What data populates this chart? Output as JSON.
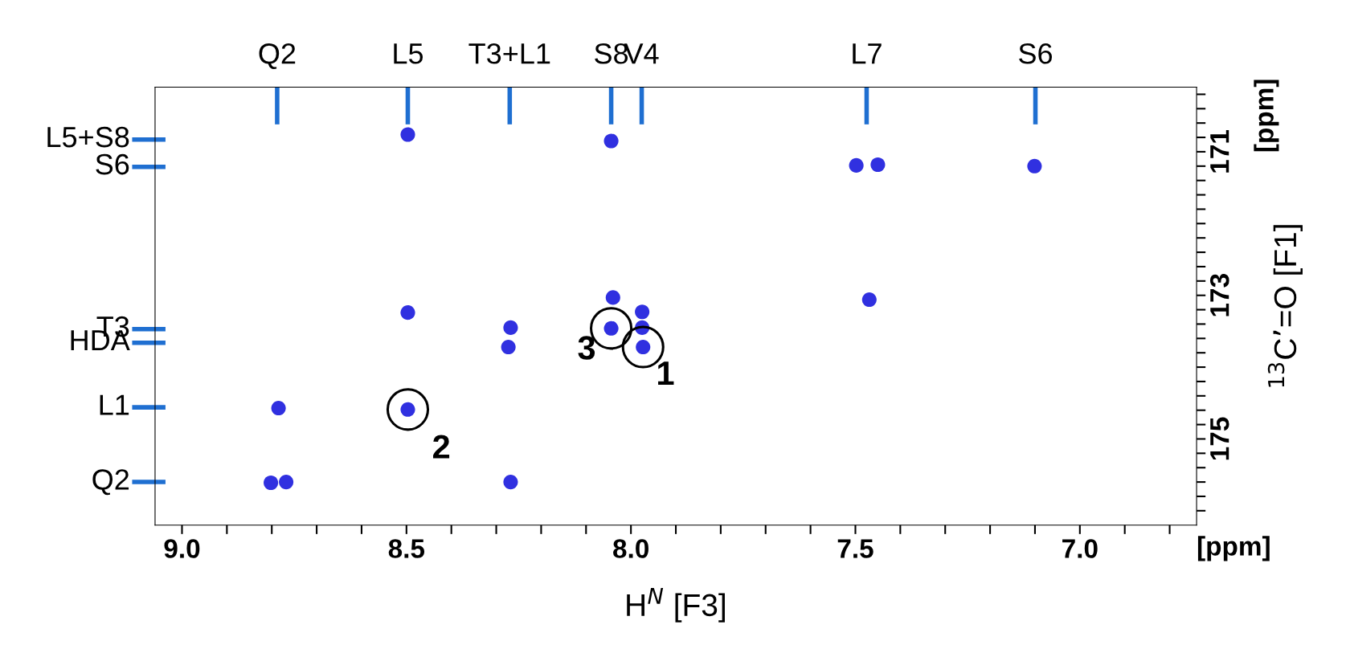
{
  "chart_data": {
    "type": "scatter",
    "xlabel": "H$^{N}$ [F3]",
    "ylabel": "$^{13}$C’=O [F1]",
    "x": [
      8.497,
      8.044,
      8.497,
      8.268,
      8.273,
      8.04,
      8.044,
      7.975,
      7.975,
      7.973,
      8.785,
      8.497,
      8.802,
      8.768,
      8.268,
      7.498,
      7.45,
      7.101,
      7.469
    ],
    "series": [
      {
        "color": "#3030e0",
        "values": [
          170.76,
          170.85,
          173.24,
          173.45,
          173.72,
          173.03,
          173.46,
          173.23,
          173.45,
          173.72,
          174.57,
          174.59,
          175.61,
          175.6,
          175.6,
          171.19,
          171.18,
          171.2,
          173.06
        ]
      }
    ],
    "marker": "circle",
    "xlim": [
      9.06,
      6.74
    ],
    "xticks": [
      {
        "value": 9.0,
        "label": "9.0"
      },
      {
        "value": 8.9,
        "label": null
      },
      {
        "value": 8.8,
        "label": null
      },
      {
        "value": 8.7,
        "label": null
      },
      {
        "value": 8.6,
        "label": null
      },
      {
        "value": 8.5,
        "label": "8.5"
      },
      {
        "value": 8.4,
        "label": null
      },
      {
        "value": 8.3,
        "label": null
      },
      {
        "value": 8.2,
        "label": null
      },
      {
        "value": 8.1,
        "label": null
      },
      {
        "value": 8.0,
        "label": "8.0"
      },
      {
        "value": 7.9,
        "label": null
      },
      {
        "value": 7.8,
        "label": null
      },
      {
        "value": 7.7,
        "label": null
      },
      {
        "value": 7.6,
        "label": null
      },
      {
        "value": 7.5,
        "label": "7.5"
      },
      {
        "value": 7.4,
        "label": null
      },
      {
        "value": 7.3,
        "label": null
      },
      {
        "value": 7.2,
        "label": null
      },
      {
        "value": 7.1,
        "label": null
      },
      {
        "value": 7.0,
        "label": "7.0"
      },
      {
        "value": 6.9,
        "label": null
      },
      {
        "value": 6.8,
        "label": null
      }
    ],
    "ylim": [
      176.2,
      170.1
    ],
    "yticks": [
      {
        "value": 170.2,
        "label": null
      },
      {
        "value": 170.4,
        "label": null
      },
      {
        "value": 170.6,
        "label": null
      },
      {
        "value": 170.8,
        "label": null
      },
      {
        "value": 171,
        "label": "171"
      },
      {
        "value": 171.2,
        "label": null
      },
      {
        "value": 171.4,
        "label": null
      },
      {
        "value": 171.6,
        "label": null
      },
      {
        "value": 171.8,
        "label": null
      },
      {
        "value": 172.0,
        "label": null
      },
      {
        "value": 172.2,
        "label": null
      },
      {
        "value": 172.4,
        "label": null
      },
      {
        "value": 172.6,
        "label": null
      },
      {
        "value": 172.8,
        "label": null
      },
      {
        "value": 173,
        "label": "173"
      },
      {
        "value": 173.2,
        "label": null
      },
      {
        "value": 173.4,
        "label": null
      },
      {
        "value": 173.6,
        "label": null
      },
      {
        "value": 173.8,
        "label": null
      },
      {
        "value": 174.0,
        "label": null
      },
      {
        "value": 174.2,
        "label": null
      },
      {
        "value": 174.4,
        "label": null
      },
      {
        "value": 174.6,
        "label": null
      },
      {
        "value": 174.8,
        "label": null
      },
      {
        "value": 175,
        "label": "175"
      },
      {
        "value": 175.2,
        "label": null
      },
      {
        "value": 175.4,
        "label": null
      },
      {
        "value": 175.6,
        "label": null
      },
      {
        "value": 175.8,
        "label": null
      },
      {
        "value": 176.0,
        "label": null
      }
    ],
    "grid": false,
    "legend": false,
    "annotations": [
      {
        "text": "1",
        "x": 7.973,
        "y": 173.72
      },
      {
        "text": "2",
        "x": 8.497,
        "y": 174.59
      },
      {
        "text": "3",
        "x": 8.044,
        "y": 173.46
      },
      "[ppm]",
      "[ppm]"
    ],
    "ref_lines": [
      {
        "axis": "x",
        "value": 8.788,
        "label": "Q2",
        "color": "#1f6fd1"
      },
      {
        "axis": "x",
        "value": 8.497,
        "label": "L5",
        "color": "#1f6fd1"
      },
      {
        "axis": "x",
        "value": 8.27,
        "label": "T3+L1",
        "color": "#1f6fd1"
      },
      {
        "axis": "x",
        "value": 8.044,
        "label": "S8",
        "color": "#1f6fd1"
      },
      {
        "axis": "x",
        "value": 7.976,
        "label": "V4",
        "color": "#1f6fd1"
      },
      {
        "axis": "x",
        "value": 7.475,
        "label": "L7",
        "color": "#1f6fd1"
      },
      {
        "axis": "x",
        "value": 7.099,
        "label": "S6",
        "color": "#1f6fd1"
      },
      {
        "axis": "y",
        "value": 170.83,
        "label": "L5+S8",
        "color": "#1f6fd1"
      },
      {
        "axis": "y",
        "value": 171.21,
        "label": "S6",
        "color": "#1f6fd1"
      },
      {
        "axis": "y",
        "value": 173.47,
        "label": "T3",
        "color": "#1f6fd1"
      },
      {
        "axis": "y",
        "value": 173.66,
        "label": "HDA",
        "color": "#1f6fd1"
      },
      {
        "axis": "y",
        "value": 174.56,
        "label": "L1",
        "color": "#1f6fd1"
      },
      {
        "axis": "y",
        "value": 175.6,
        "label": "Q2",
        "color": "#1f6fd1"
      }
    ]
  }
}
